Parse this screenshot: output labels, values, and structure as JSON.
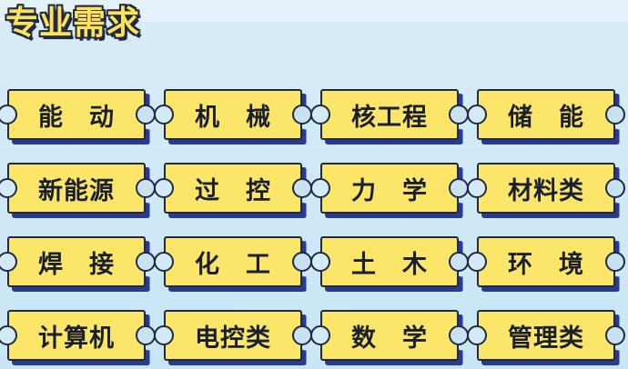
{
  "title": "专业需求",
  "colors": {
    "ticket_fill": "#fbe66a",
    "ticket_border": "#1f2a44",
    "ticket_shadow": "#2a3b8f",
    "title_fill": "#ffe15a",
    "background": "#cfe8f6"
  },
  "majors": [
    "能　动",
    "机　械",
    "核工程",
    "储　能",
    "新能源",
    "过　控",
    "力　学",
    "材料类",
    "焊　接",
    "化　工",
    "土　木",
    "环　境",
    "计算机",
    "电控类",
    "数　学",
    "管理类"
  ]
}
